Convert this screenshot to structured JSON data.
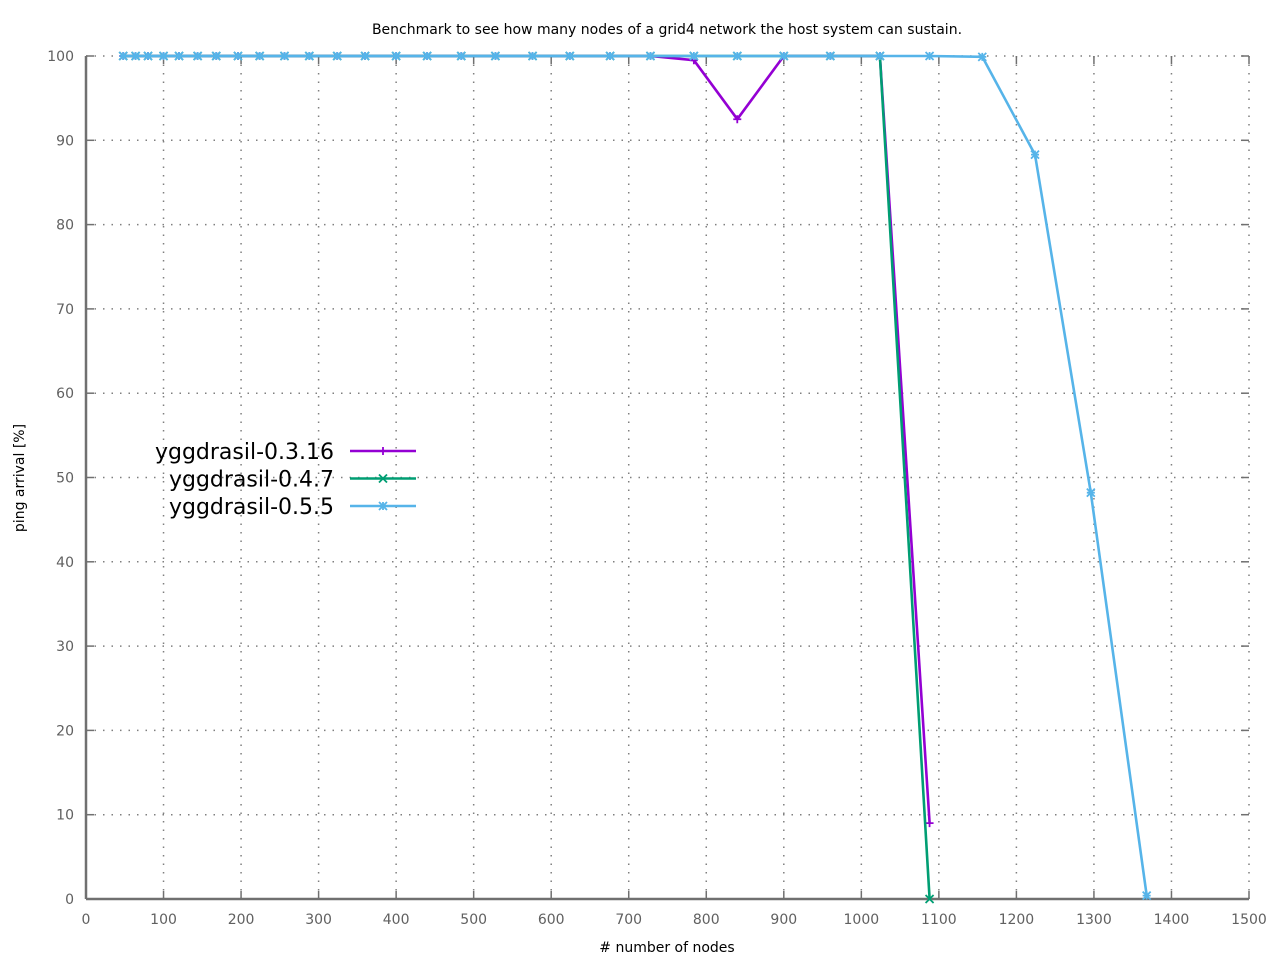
{
  "chart_data": {
    "type": "line",
    "title": "Benchmark to see how many nodes of a grid4 network the host system can sustain.",
    "xlabel": "# number of nodes",
    "ylabel": "ping arrival [%]",
    "xlim": [
      0,
      1500
    ],
    "ylim": [
      0,
      100
    ],
    "xticks": [
      0,
      100,
      200,
      300,
      400,
      500,
      600,
      700,
      800,
      900,
      1000,
      1100,
      1200,
      1300,
      1400,
      1500
    ],
    "yticks": [
      0,
      10,
      20,
      30,
      40,
      50,
      60,
      70,
      80,
      90,
      100
    ],
    "xtick_labels": [
      "0",
      "100",
      "200",
      "300",
      "400",
      "500",
      "600",
      "700",
      "800",
      "900",
      "1000",
      "1100",
      "1200",
      "1300",
      "1400",
      "1500"
    ],
    "ytick_labels": [
      "0",
      "10",
      "20",
      "30",
      "40",
      "50",
      "60",
      "70",
      "80",
      "90",
      "100"
    ],
    "grid": true,
    "legend_position": "middle-left",
    "series": [
      {
        "name": "yggdrasil-0.3.16",
        "color": "#9400d3",
        "marker": "plus",
        "x": [
          48,
          64,
          80,
          100,
          120,
          144,
          168,
          196,
          224,
          256,
          288,
          324,
          360,
          400,
          440,
          484,
          528,
          576,
          624,
          676,
          728,
          784,
          840,
          900,
          960,
          1024,
          1088
        ],
        "y": [
          100,
          100,
          100,
          100,
          100,
          100,
          100,
          100,
          100,
          100,
          100,
          100,
          100,
          100,
          100,
          100,
          100,
          100,
          100,
          100,
          100,
          99.5,
          92.5,
          100,
          100,
          100,
          9
        ]
      },
      {
        "name": "yggdrasil-0.4.7",
        "color": "#009e73",
        "marker": "cross",
        "x": [
          48,
          64,
          80,
          100,
          120,
          144,
          168,
          196,
          224,
          256,
          288,
          324,
          360,
          400,
          440,
          484,
          528,
          576,
          624,
          676,
          728,
          784,
          840,
          900,
          960,
          1024,
          1088
        ],
        "y": [
          100,
          100,
          100,
          100,
          100,
          100,
          100,
          100,
          100,
          100,
          100,
          100,
          100,
          100,
          100,
          100,
          100,
          100,
          100,
          100,
          100,
          100,
          100,
          100,
          100,
          100,
          0
        ]
      },
      {
        "name": "yggdrasil-0.5.5",
        "color": "#56b4e9",
        "marker": "star",
        "x": [
          48,
          64,
          80,
          100,
          120,
          144,
          168,
          196,
          224,
          256,
          288,
          324,
          360,
          400,
          440,
          484,
          528,
          576,
          624,
          676,
          728,
          784,
          840,
          900,
          960,
          1024,
          1088,
          1156,
          1224,
          1296,
          1368
        ],
        "y": [
          100,
          100,
          100,
          100,
          100,
          100,
          100,
          100,
          100,
          100,
          100,
          100,
          100,
          100,
          100,
          100,
          100,
          100,
          100,
          100,
          100,
          100,
          100,
          100,
          100,
          100,
          100,
          99.9,
          88.3,
          48.2,
          0.4
        ]
      }
    ]
  }
}
